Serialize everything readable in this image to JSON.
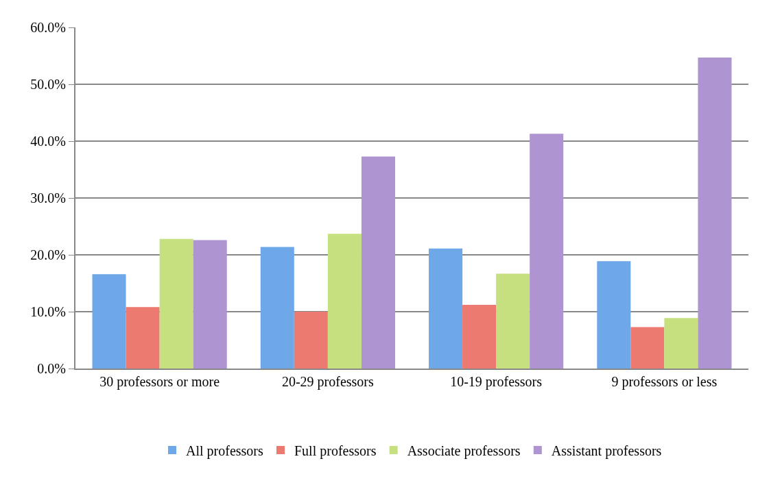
{
  "chart_data": {
    "type": "bar",
    "categories": [
      "30 professors or more",
      "20-29 professors",
      "10-19 professors",
      "9 professors or less"
    ],
    "series": [
      {
        "name": "All professors",
        "color": "#6fa8e8",
        "values": [
          16.6,
          21.4,
          21.1,
          18.9
        ]
      },
      {
        "name": "Full professors",
        "color": "#ec7a70",
        "values": [
          10.8,
          10.0,
          11.2,
          7.3
        ]
      },
      {
        "name": "Associate professors",
        "color": "#c6e07f",
        "values": [
          22.8,
          23.7,
          16.7,
          8.9
        ]
      },
      {
        "name": "Assistant professors",
        "color": "#ae94d0",
        "values": [
          22.6,
          37.3,
          41.3,
          54.7
        ]
      }
    ],
    "ylim": [
      0,
      60
    ],
    "yticks": [
      {
        "value": 0,
        "label": "0.0%"
      },
      {
        "value": 10,
        "label": "10.0%"
      },
      {
        "value": 20,
        "label": "20.0%"
      },
      {
        "value": 30,
        "label": "30.0%"
      },
      {
        "value": 40,
        "label": "40.0%"
      },
      {
        "value": 50,
        "label": "50.0%"
      },
      {
        "value": 60,
        "label": "60.0%"
      }
    ],
    "grid": "y",
    "legend": "bottom"
  }
}
